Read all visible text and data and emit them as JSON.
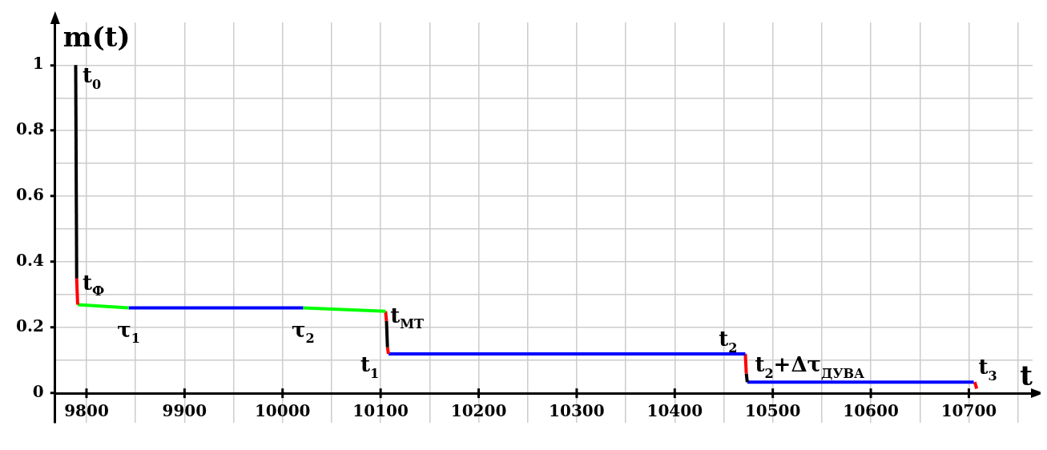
{
  "chart_data": {
    "type": "line",
    "xlabel": "t",
    "ylabel": "m(t)",
    "xlim": [
      9768,
      10765
    ],
    "ylim": [
      -0.09,
      1.13
    ],
    "xticks": [
      9800,
      {
        "value": 9850,
        "label": null
      },
      9900,
      {
        "value": 9950,
        "label": null
      },
      10000,
      {
        "value": 10050,
        "label": null
      },
      10100,
      {
        "value": 10150,
        "label": null
      },
      10200,
      {
        "value": 10250,
        "label": null
      },
      10300,
      {
        "value": 10350,
        "label": null
      },
      10400,
      {
        "value": 10450,
        "label": null
      },
      10500,
      {
        "value": 10550,
        "label": null
      },
      10600,
      {
        "value": 10650,
        "label": null
      },
      10700,
      {
        "value": 10750,
        "label": null
      }
    ],
    "yticks": [
      0,
      {
        "value": 0.1,
        "label": null
      },
      0.2,
      {
        "value": 0.3,
        "label": null
      },
      0.4,
      {
        "value": 0.5,
        "label": null
      },
      0.6,
      {
        "value": 0.7,
        "label": null
      },
      0.8,
      {
        "value": 0.9,
        "label": null
      },
      1
    ],
    "grid": true,
    "legend": false,
    "marker": "none",
    "line_style": "solid",
    "series": [
      {
        "type": "line",
        "color": "#000000",
        "x": [
          9789,
          9790
        ],
        "values": [
          1,
          0.35
        ]
      },
      {
        "type": "line",
        "color": "#ff0000",
        "x": [
          9790,
          9791
        ],
        "values": [
          0.35,
          0.27
        ]
      },
      {
        "type": "line",
        "color": "#00ff00",
        "x": [
          9791,
          9843
        ],
        "values": [
          0.27,
          0.26
        ]
      },
      {
        "type": "line",
        "color": "#0000ff",
        "x": [
          9843,
          10021
        ],
        "values": [
          0.26,
          0.26
        ]
      },
      {
        "type": "line",
        "color": "#00ff00",
        "x": [
          10021,
          10105
        ],
        "values": [
          0.26,
          0.25
        ]
      },
      {
        "type": "line",
        "color": "#ff0000",
        "x": [
          10105,
          10106
        ],
        "values": [
          0.25,
          0.22
        ]
      },
      {
        "type": "line",
        "color": "#000000",
        "x": [
          10106,
          10107
        ],
        "values": [
          0.22,
          0.14
        ]
      },
      {
        "type": "line",
        "color": "#ff0000",
        "x": [
          10107,
          10108
        ],
        "values": [
          0.14,
          0.12
        ]
      },
      {
        "type": "line",
        "color": "#0000ff",
        "x": [
          10108,
          10472
        ],
        "values": [
          0.12,
          0.12
        ]
      },
      {
        "type": "line",
        "color": "#ff0000",
        "x": [
          10472,
          10473
        ],
        "values": [
          0.12,
          0.06
        ]
      },
      {
        "type": "line",
        "color": "#000000",
        "x": [
          10473,
          10474
        ],
        "values": [
          0.06,
          0.034
        ]
      },
      {
        "type": "line",
        "color": "#0000ff",
        "x": [
          10474,
          10705
        ],
        "values": [
          0.034,
          0.034
        ]
      },
      {
        "type": "line",
        "color": "#ff0000",
        "x": [
          10706,
          10708
        ],
        "values": [
          0.034,
          0.014
        ]
      }
    ],
    "annotations": [
      {
        "text": "t$_{0}$",
        "x": 9791,
        "y": 1
      },
      {
        "text": "t$_{Ф}$",
        "x": 9791,
        "y": 0.35
      },
      {
        "text": "τ$_{1}$",
        "x": 9843,
        "y": 0.26
      },
      {
        "text": "τ$_{2}$",
        "x": 10021,
        "y": 0.26
      },
      {
        "text": "t$_{МТ}$",
        "x": 10105,
        "y": 0.25
      },
      {
        "text": "t$_{1}$",
        "x": 10105,
        "y": 0.12
      },
      {
        "text": "t$_{2}$",
        "x": 10472,
        "y": 0.12
      },
      {
        "text": "t$_{2}$+Δτ$_{ДУВА}$",
        "x": 10472,
        "y": 0.12
      },
      {
        "text": "t$_{3}$",
        "x": 10705,
        "y": 0.034
      }
    ]
  }
}
